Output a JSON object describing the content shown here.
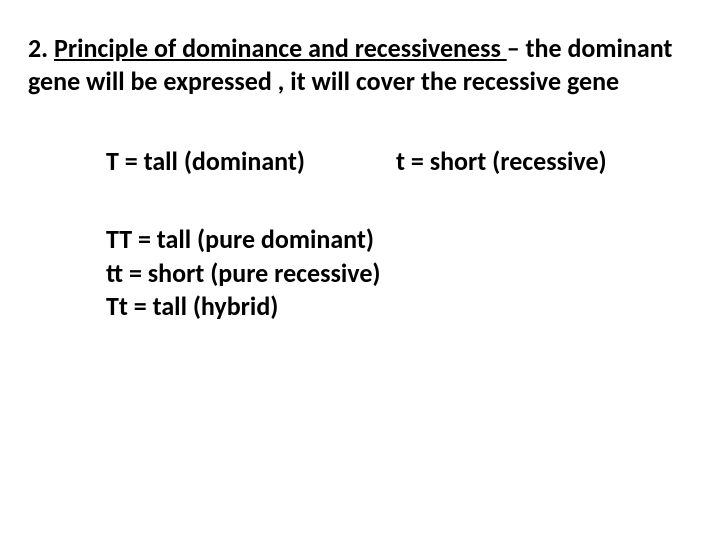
{
  "heading": {
    "prefix": "2. ",
    "underlined": "Principle of dominance and recessiveness ",
    "suffix": "– the dominant gene will be expressed , it will cover the recessive gene"
  },
  "alleles": {
    "dominant": "T = tall (dominant)",
    "recessive": "t = short (recessive)"
  },
  "genotypes": {
    "homo_dom": "TT = tall (pure dominant)",
    "homo_rec": "tt = short (pure recessive)",
    "hetero": "Tt = tall (hybrid)"
  },
  "colors": {
    "background": "#ffffff",
    "text": "#000000"
  },
  "typography": {
    "font_family": "Calibri, Arial, sans-serif",
    "heading_fontsize": 26,
    "body_fontsize": 26,
    "font_weight": "bold"
  }
}
